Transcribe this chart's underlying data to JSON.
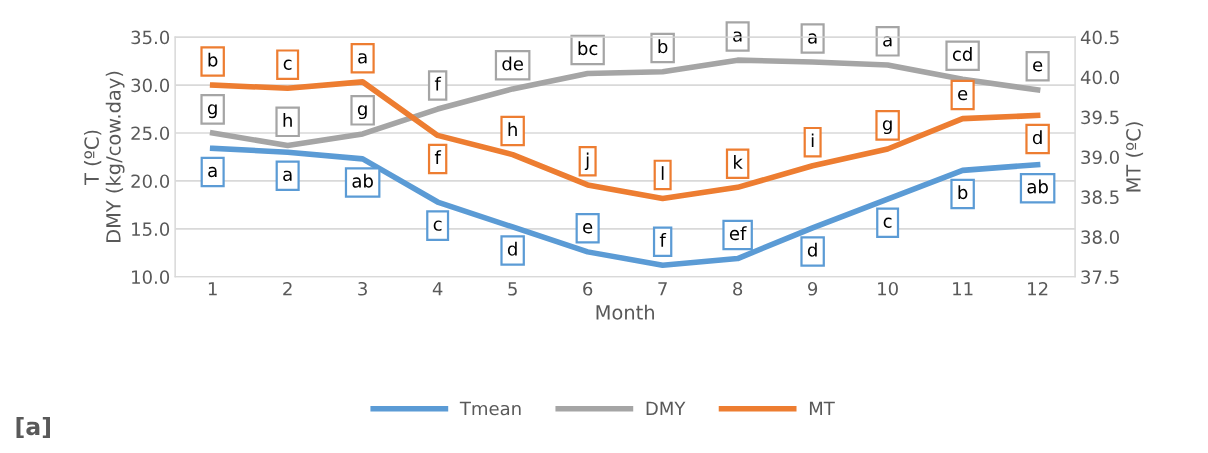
{
  "chart_data": {
    "type": "line",
    "categories": [
      "1",
      "2",
      "3",
      "4",
      "5",
      "6",
      "7",
      "8",
      "9",
      "10",
      "11",
      "12"
    ],
    "xlabel": "Month",
    "ylabel": "T (ºC)\nDMY (kg/cow.day)",
    "y2label": "MT (ºC)",
    "ylim": [
      10,
      35
    ],
    "yticks": [
      {
        "value": 10,
        "label": "10.0"
      },
      {
        "value": 15,
        "label": "15.0"
      },
      {
        "value": 20,
        "label": "20.0"
      },
      {
        "value": 25,
        "label": "25.0"
      },
      {
        "value": 30,
        "label": "30.0"
      },
      {
        "value": 35,
        "label": "35.0"
      }
    ],
    "y2lim": [
      37.5,
      40.5
    ],
    "y2ticks": [
      {
        "value": 37.5,
        "label": "37.5"
      },
      {
        "value": 38,
        "label": "38.0"
      },
      {
        "value": 38.5,
        "label": "38.5"
      },
      {
        "value": 39,
        "label": "39.0"
      },
      {
        "value": 39.5,
        "label": "39.5"
      },
      {
        "value": 40,
        "label": "40.0"
      },
      {
        "value": 40.5,
        "label": "40.5"
      }
    ],
    "grid": "y",
    "legend": "bottom",
    "marker": "none",
    "annotations": [
      "[a]"
    ],
    "series": [
      {
        "name": "Tmean",
        "color": "#5b9bd5",
        "values": [
          23.4,
          23.0,
          22.3,
          17.8,
          15.2,
          12.6,
          11.2,
          11.9,
          15.1,
          18.1,
          21.1,
          21.7
        ],
        "value_labels": [
          "a",
          "a",
          "ab",
          "c",
          "d",
          "e",
          "f",
          "ef",
          "d",
          "c",
          "b",
          "ab"
        ]
      },
      {
        "name": "DMY",
        "color": "#a5a5a5",
        "values": [
          25.0,
          23.7,
          24.9,
          27.5,
          29.6,
          31.2,
          31.4,
          32.6,
          32.4,
          32.1,
          30.6,
          29.5
        ],
        "value_labels": [
          "g",
          "h",
          "g",
          "f",
          "de",
          "bc",
          "b",
          "a",
          "a",
          "a",
          "cd",
          "e"
        ]
      },
      {
        "name": "MT",
        "color": "#ed7d31",
        "axis": "y2",
        "values": [
          39.9,
          39.86,
          39.94,
          39.27,
          39.03,
          38.65,
          38.48,
          38.62,
          38.89,
          39.1,
          39.48,
          39.52
        ],
        "value_labels": [
          "b",
          "c",
          "a",
          "f",
          "h",
          "j",
          "l",
          "k",
          "i",
          "g",
          "e",
          "d"
        ]
      }
    ]
  }
}
